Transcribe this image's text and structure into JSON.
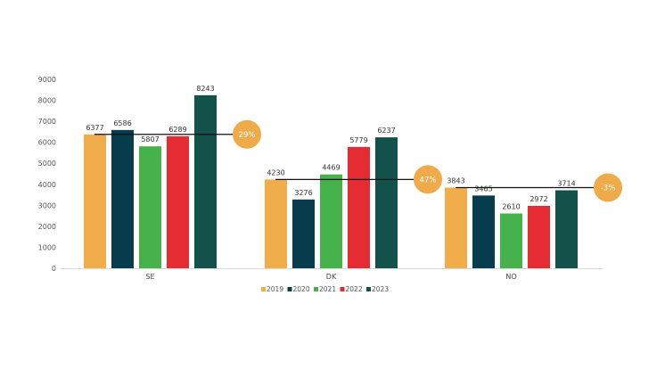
{
  "chart_data": {
    "type": "bar",
    "categories": [
      "SE",
      "DK",
      "NO"
    ],
    "series": [
      {
        "name": "2019",
        "color": "#F0AD4A",
        "values": [
          6377,
          4230,
          3843
        ]
      },
      {
        "name": "2020",
        "color": "#063C4C",
        "values": [
          6586,
          3276,
          3465
        ]
      },
      {
        "name": "2021",
        "color": "#45B24C",
        "values": [
          5807,
          4469,
          2610
        ]
      },
      {
        "name": "2022",
        "color": "#E62C33",
        "values": [
          6289,
          5779,
          2972
        ]
      },
      {
        "name": "2023",
        "color": "#12524A",
        "values": [
          8243,
          6237,
          3714
        ]
      }
    ],
    "ylim": [
      0,
      9000
    ],
    "yticks": [
      0,
      1000,
      2000,
      3000,
      4000,
      5000,
      6000,
      7000,
      8000,
      9000
    ],
    "title": "",
    "xlabel": "",
    "ylabel": "",
    "grid": false,
    "legend_position": "bottom",
    "annotations": [
      {
        "category": "SE",
        "label": "29%",
        "reference_value": 6377
      },
      {
        "category": "DK",
        "label": "47%",
        "reference_value": 4230
      },
      {
        "category": "NO",
        "label": "-3%",
        "reference_value": 3843
      }
    ],
    "badge_color": "#EFAA4A"
  }
}
